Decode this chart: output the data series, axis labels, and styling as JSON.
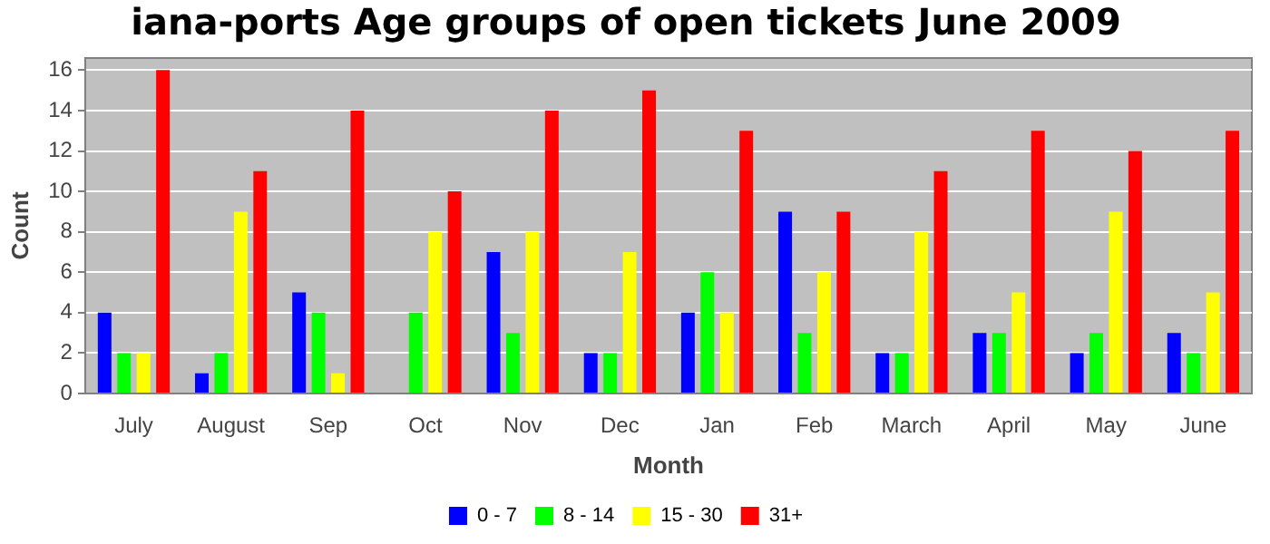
{
  "chart_data": {
    "type": "bar",
    "title": "iana-ports Age groups of open tickets June 2009",
    "xlabel": "Month",
    "ylabel": "Count",
    "categories": [
      "July",
      "August",
      "Sep",
      "Oct",
      "Nov",
      "Dec",
      "Jan",
      "Feb",
      "March",
      "April",
      "May",
      "June"
    ],
    "series": [
      {
        "name": "0 - 7",
        "color": "#0000ff",
        "values": [
          4,
          1,
          5,
          0,
          7,
          2,
          4,
          9,
          2,
          3,
          2,
          3
        ]
      },
      {
        "name": "8 - 14",
        "color": "#00ff00",
        "values": [
          2,
          2,
          4,
          4,
          3,
          2,
          6,
          3,
          2,
          3,
          3,
          2
        ]
      },
      {
        "name": "15 - 30",
        "color": "#ffff00",
        "values": [
          2,
          9,
          1,
          8,
          8,
          7,
          4,
          6,
          8,
          5,
          9,
          5
        ]
      },
      {
        "name": "31+",
        "color": "#ff0000",
        "values": [
          16,
          11,
          14,
          10,
          14,
          15,
          13,
          9,
          11,
          13,
          12,
          13
        ]
      }
    ],
    "ylim": [
      0,
      16.6
    ],
    "yticks": [
      0,
      2,
      4,
      6,
      8,
      10,
      12,
      14,
      16
    ],
    "grid": "y",
    "legend": "bottom"
  }
}
